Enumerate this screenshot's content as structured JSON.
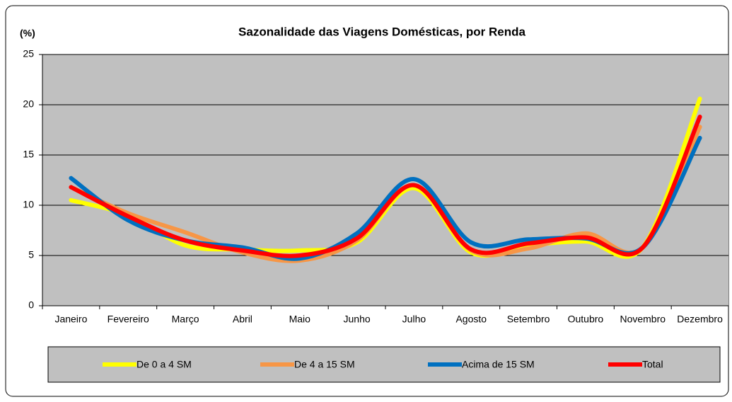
{
  "chart_data": {
    "type": "line",
    "title": "Sazonalidade das Viagens Domésticas, por Renda",
    "y_label": "(%)",
    "categories": [
      "Janeiro",
      "Fevereiro",
      "Março",
      "Abril",
      "Maio",
      "Junho",
      "Julho",
      "Agosto",
      "Setembro",
      "Outubro",
      "Novembro",
      "Dezembro"
    ],
    "series": [
      {
        "name": "De 0 a 4 SM",
        "color": "#ffff00",
        "values": [
          10.5,
          9.0,
          6.0,
          5.6,
          5.5,
          6.3,
          11.7,
          5.3,
          6.0,
          6.4,
          5.8,
          20.6
        ]
      },
      {
        "name": "De 4 a 15 SM",
        "color": "#f79646",
        "values": [
          11.8,
          9.2,
          7.3,
          5.3,
          4.5,
          6.5,
          12.0,
          5.5,
          5.7,
          7.2,
          5.8,
          17.8
        ]
      },
      {
        "name": "Acima de 15 SM",
        "color": "#0070c0",
        "values": [
          12.7,
          8.5,
          6.5,
          5.8,
          4.7,
          7.2,
          12.6,
          6.3,
          6.6,
          6.7,
          5.8,
          16.7
        ]
      },
      {
        "name": "Total",
        "color": "#ff0000",
        "values": [
          11.8,
          8.9,
          6.5,
          5.5,
          5.0,
          6.7,
          12.0,
          5.6,
          6.2,
          6.8,
          5.8,
          18.8
        ]
      }
    ],
    "ylim": [
      0,
      25
    ],
    "yticks": [
      0,
      5,
      10,
      15,
      20,
      25
    ],
    "grid": true,
    "smooth": true,
    "legend": "bottom"
  }
}
